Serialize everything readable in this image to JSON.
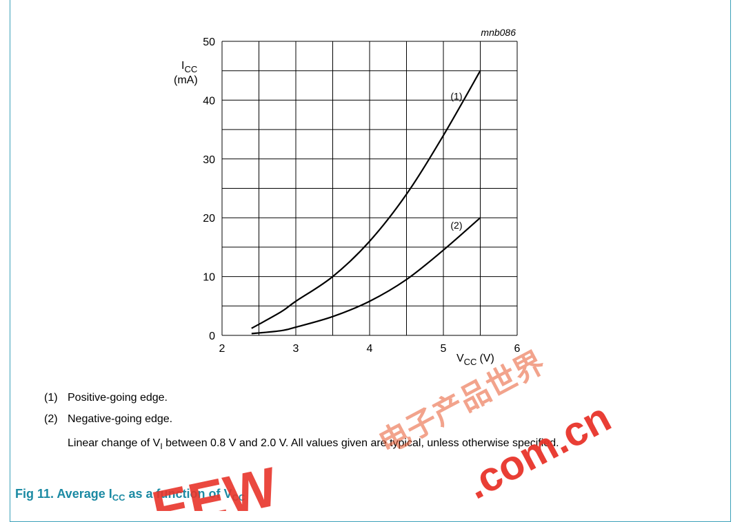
{
  "chart_data": {
    "type": "line",
    "figure_id": "mnb086",
    "x_axis": {
      "label_main": "V",
      "label_sub": "CC",
      "label_unit": "(V)",
      "range": [
        2,
        6
      ],
      "ticks": [
        2,
        3,
        4,
        5,
        6
      ]
    },
    "y_axis": {
      "label_main": "I",
      "label_sub": "CC",
      "label_unit": "(mA)",
      "range": [
        0,
        50
      ],
      "ticks": [
        0,
        10,
        20,
        30,
        40,
        50
      ]
    },
    "grid": true,
    "series": [
      {
        "name": "(1)",
        "x": [
          2.4,
          2.8,
          3.0,
          3.5,
          4.0,
          4.5,
          5.0,
          5.5
        ],
        "y": [
          1.2,
          4.0,
          5.8,
          10.0,
          16.0,
          24.0,
          34.0,
          45.0
        ]
      },
      {
        "name": "(2)",
        "x": [
          2.4,
          2.8,
          3.0,
          3.5,
          4.0,
          4.5,
          5.0,
          5.5
        ],
        "y": [
          0.3,
          0.8,
          1.4,
          3.2,
          5.8,
          9.5,
          14.5,
          20.0
        ]
      }
    ]
  },
  "legend": {
    "items": [
      {
        "marker": "(1)",
        "text": "Positive-going edge."
      },
      {
        "marker": "(2)",
        "text": "Negative-going edge."
      }
    ]
  },
  "note": {
    "prefix": "Linear change of V",
    "sub": "I",
    "suffix": " between 0.8 V and 2.0 V. All values given are typical, unless otherwise specified."
  },
  "caption": {
    "prefix": "Fig 11.  Average I",
    "sub1": "CC",
    "middle": " as a function of V",
    "sub2": "CC"
  },
  "watermark": {
    "text1": "电子产品世界",
    "text2": ".com.cn",
    "text3": "EEW"
  }
}
